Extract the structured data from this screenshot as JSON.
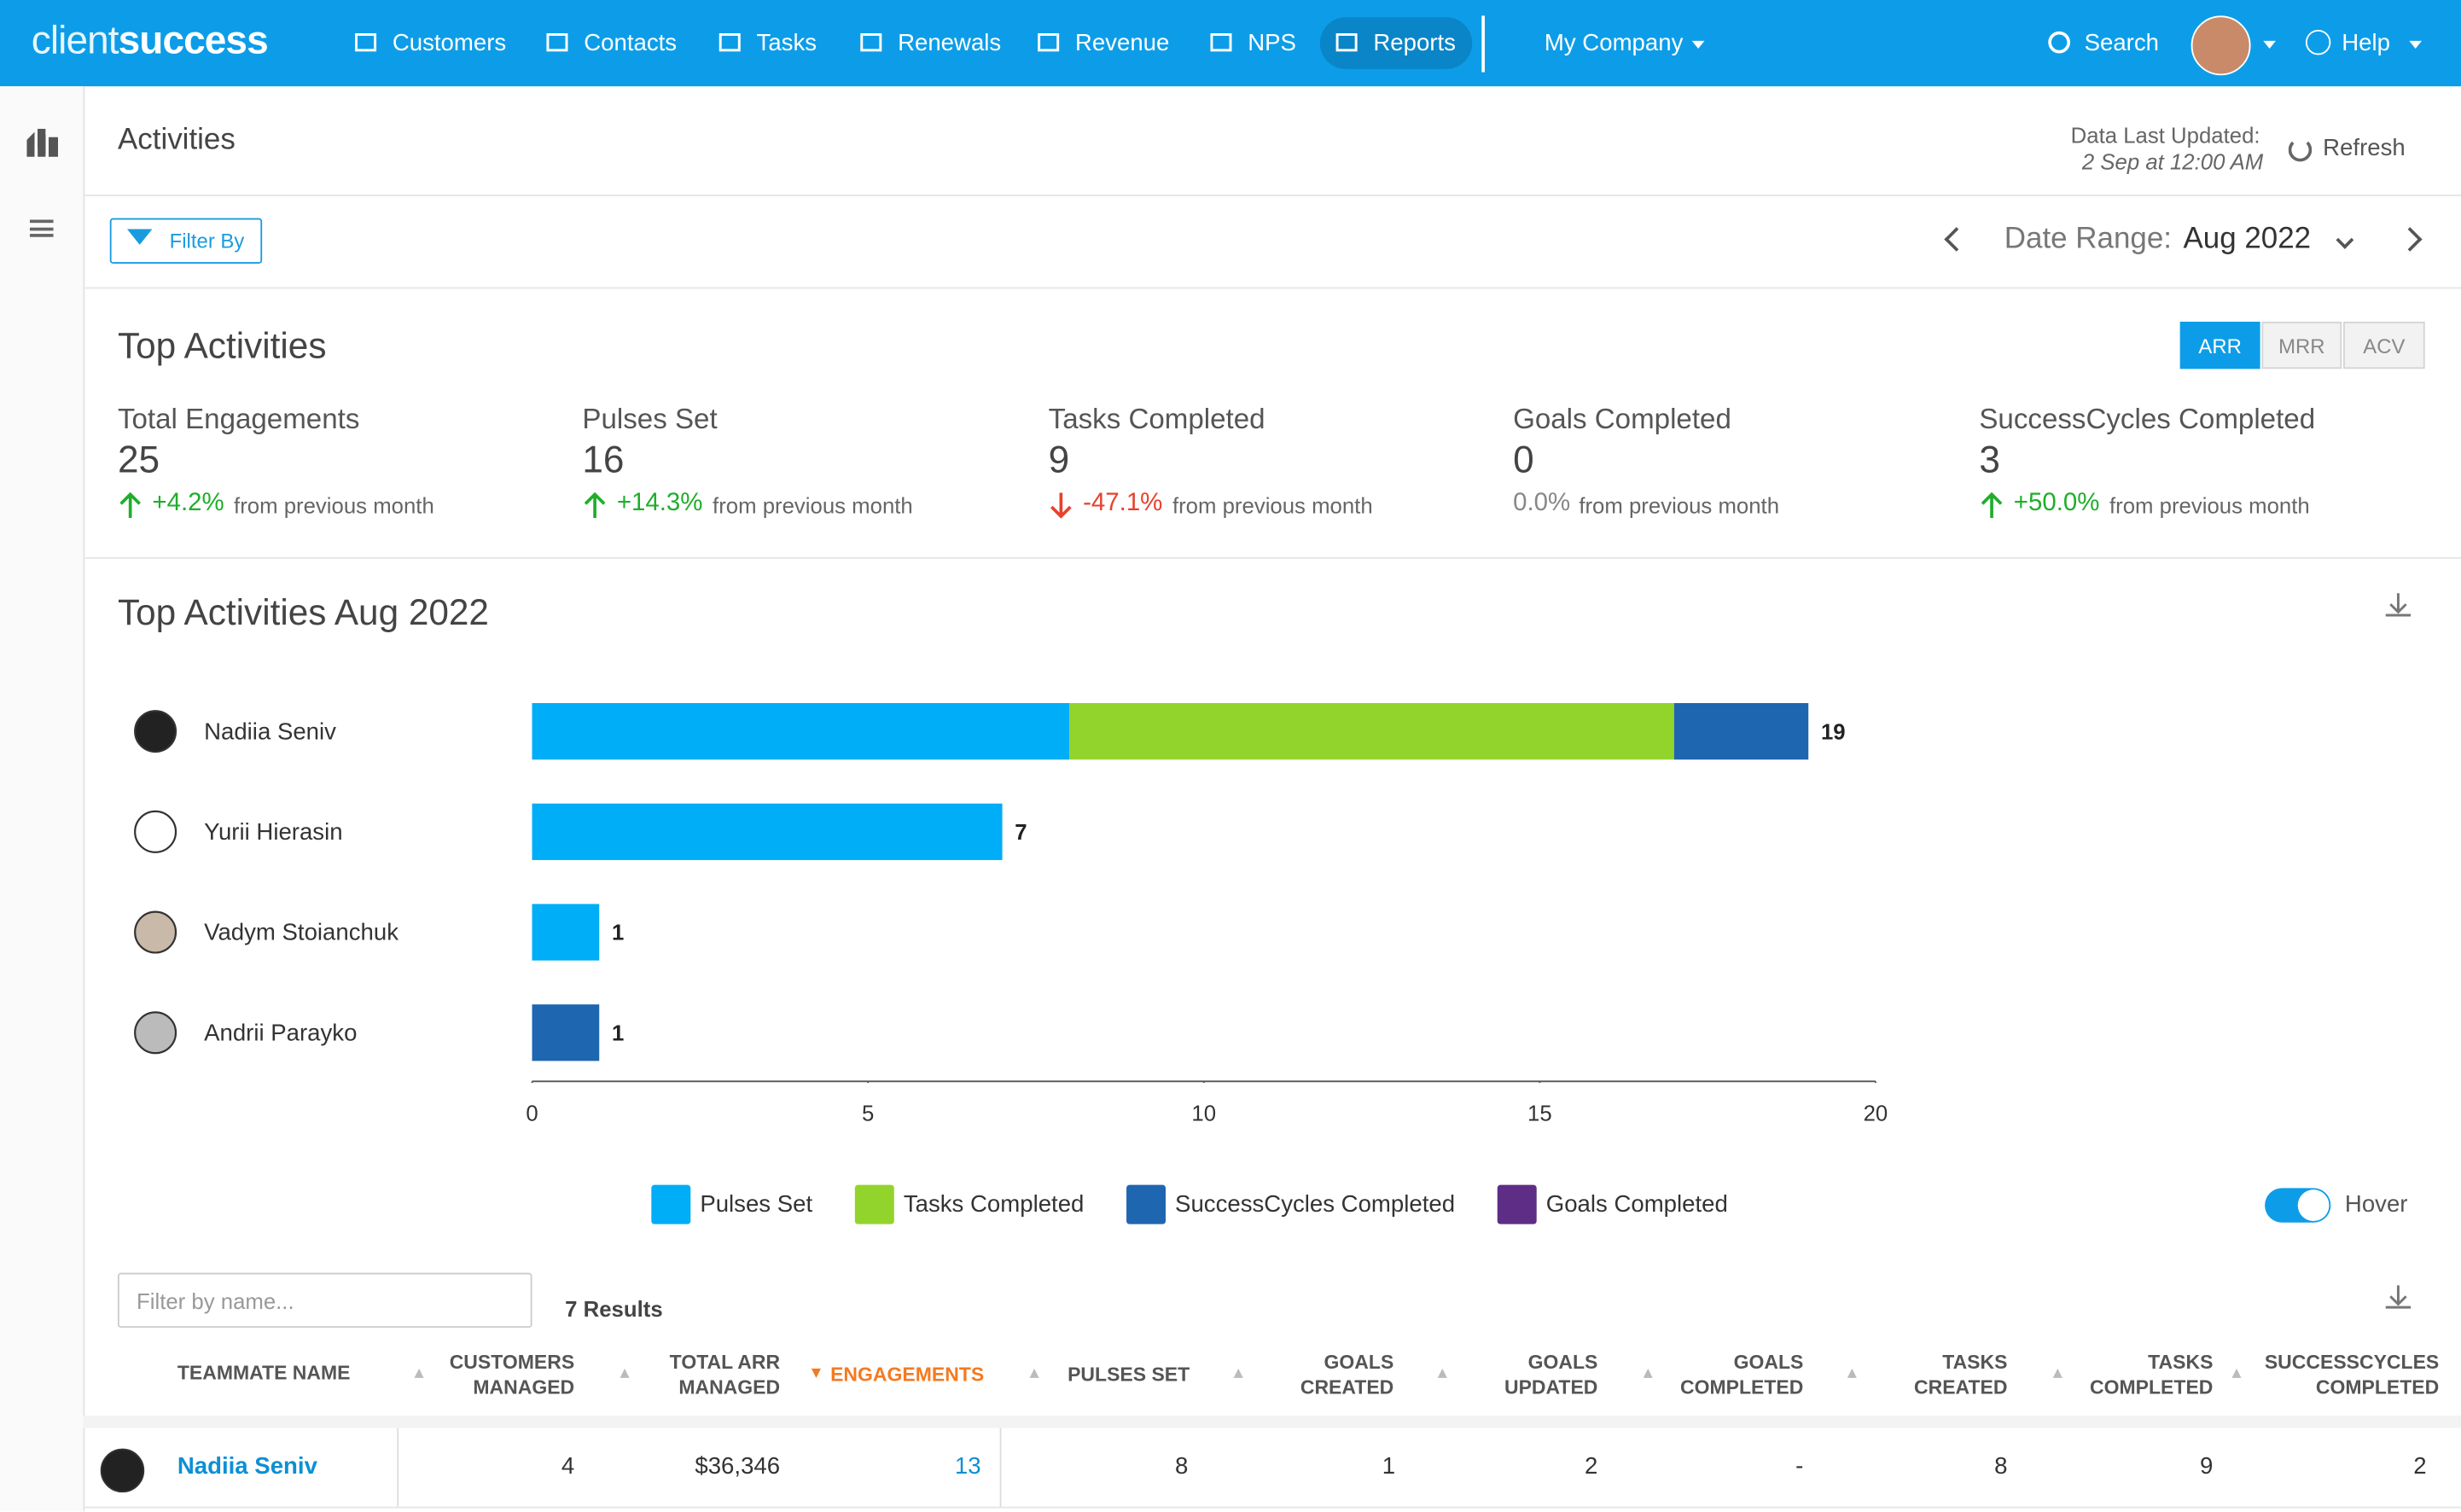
{
  "nav": {
    "logo_light": "client",
    "logo_bold": "success",
    "items": [
      "Customers",
      "Contacts",
      "Tasks",
      "Renewals",
      "Revenue",
      "NPS",
      "Reports"
    ],
    "company": "My Company",
    "search": "Search",
    "help": "Help"
  },
  "page": {
    "title": "Activities",
    "updated_label": "Data Last Updated:",
    "updated_value": "2 Sep at 12:00 AM",
    "refresh": "Refresh",
    "filter": "Filter By",
    "date_range_label": "Date Range:",
    "date_range_value": "Aug 2022"
  },
  "summary": {
    "title": "Top Activities",
    "toggles": [
      "ARR",
      "MRR",
      "ACV"
    ],
    "cards": [
      {
        "label": "Total Engagements",
        "value": "25",
        "change": "+4.2%",
        "suffix": "from previous month",
        "trend": "up"
      },
      {
        "label": "Pulses Set",
        "value": "16",
        "change": "+14.3%",
        "suffix": "from previous month",
        "trend": "up"
      },
      {
        "label": "Tasks Completed",
        "value": "9",
        "change": "-47.1%",
        "suffix": "from previous month",
        "trend": "down"
      },
      {
        "label": "Goals Completed",
        "value": "0",
        "change": "0.0%",
        "suffix": "from previous month",
        "trend": "flat"
      },
      {
        "label": "SuccessCycles Completed",
        "value": "3",
        "change": "+50.0%",
        "suffix": "from previous month",
        "trend": "up"
      }
    ]
  },
  "chart_data": {
    "type": "bar",
    "orientation": "horizontal",
    "stacked": true,
    "title": "Top Activities Aug 2022",
    "categories": [
      "Nadiia Seniv",
      "Yurii Hierasin",
      "Vadym Stoianchuk",
      "Andrii Parayko"
    ],
    "series": [
      {
        "name": "Pulses Set",
        "color": "#00adf7",
        "values": [
          8,
          7,
          1,
          0
        ]
      },
      {
        "name": "Tasks Completed",
        "color": "#93d42c",
        "values": [
          9,
          0,
          0,
          0
        ]
      },
      {
        "name": "SuccessCycles Completed",
        "color": "#1f66b1",
        "values": [
          2,
          0,
          0,
          1
        ]
      },
      {
        "name": "Goals Completed",
        "color": "#5e2d86",
        "values": [
          0,
          0,
          0,
          0
        ]
      }
    ],
    "totals": [
      19,
      7,
      1,
      1
    ],
    "xlim": [
      0,
      20
    ],
    "xticks": [
      0,
      5,
      10,
      15,
      20
    ],
    "hover_label": "Hover",
    "hover": true
  },
  "table": {
    "filter_placeholder": "Filter by name...",
    "results": "7 Results",
    "headers": [
      "TEAMMATE NAME",
      "CUSTOMERS MANAGED",
      "TOTAL ARR MANAGED",
      "ENGAGEMENTS",
      "PULSES SET",
      "GOALS CREATED",
      "GOALS UPDATED",
      "GOALS COMPLETED",
      "TASKS CREATED",
      "TASKS COMPLETED",
      "SUCCESSCYCLES COMPLETED"
    ],
    "sorted_column": 3,
    "rows": [
      [
        "Nadiia Seniv",
        "4",
        "$36,346",
        "13",
        "8",
        "1",
        "2",
        "-",
        "8",
        "9",
        "2"
      ]
    ]
  }
}
